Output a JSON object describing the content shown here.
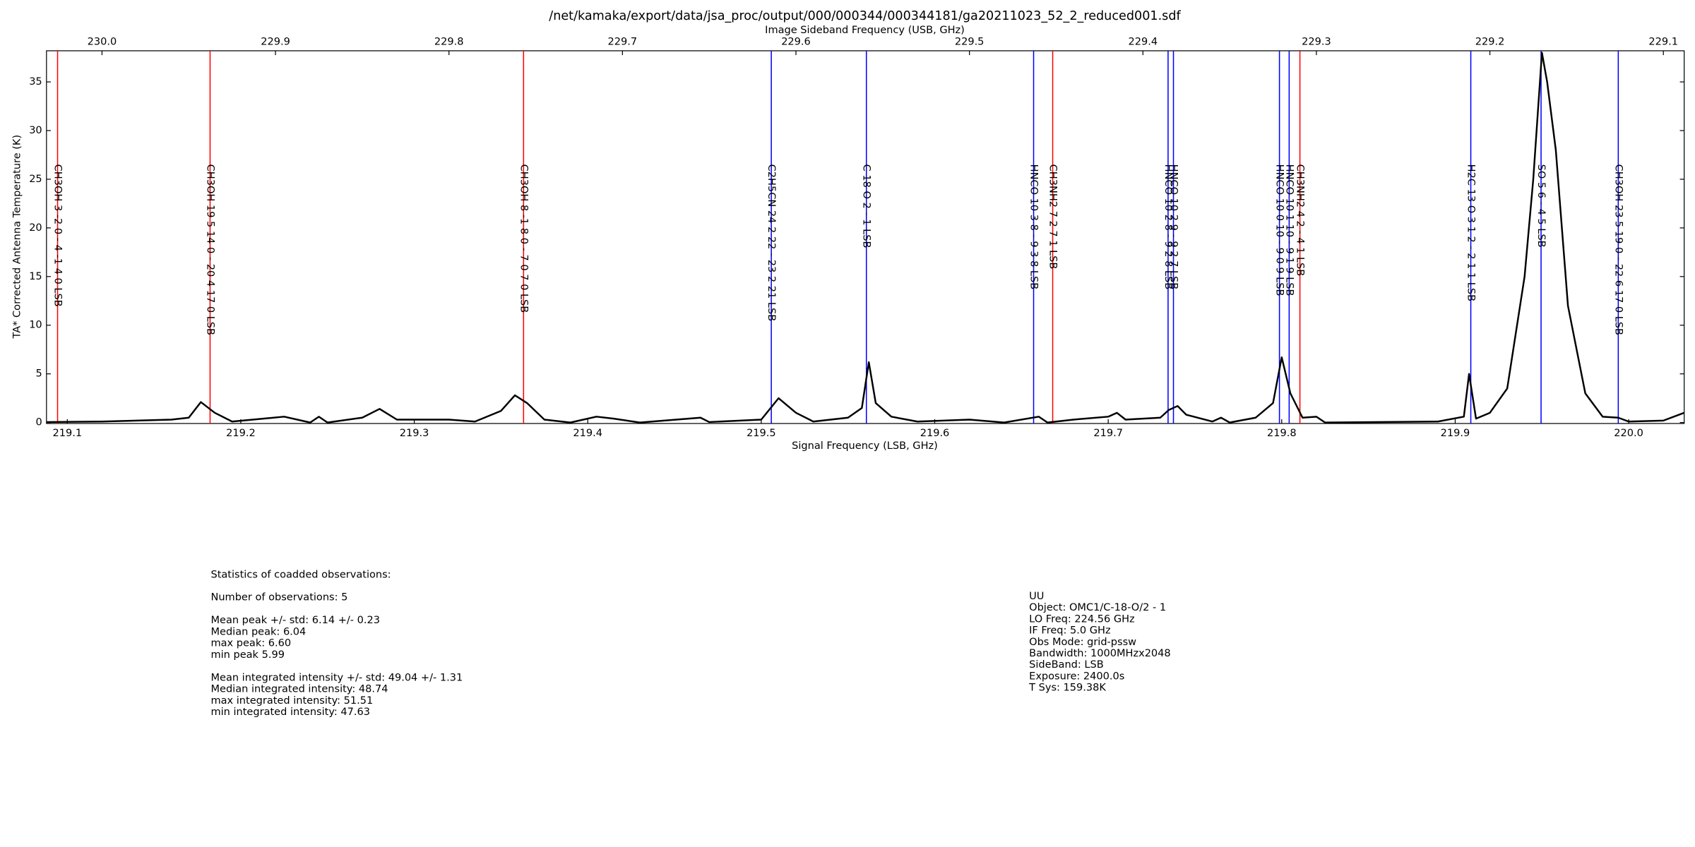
{
  "chart_data": {
    "type": "line",
    "title": "/net/kamaka/export/data/jsa_proc/output/000/000344/000344181/ga20211023_52_2_reduced001.sdf",
    "xlabel": "Signal Frequency (LSB, GHz)",
    "x2label": "Image Sideband Frequency (USB, GHz)",
    "ylabel": "TA* Corrected Antenna Temperature (K)",
    "xlim": [
      219.088,
      220.032
    ],
    "xticks": [
      219.1,
      219.2,
      219.3,
      219.4,
      219.5,
      219.6,
      219.7,
      219.8,
      219.9,
      {
        "value": 220.0,
        "label": "220.0"
      }
    ],
    "x2lim": [
      230.032,
      229.088
    ],
    "x2ticks": [
      {
        "value": 230.0,
        "label": "230.0"
      },
      229.9,
      229.8,
      229.7,
      229.6,
      229.5,
      229.4,
      229.3,
      229.2,
      229.1
    ],
    "ylim": [
      -0.1,
      38.2
    ],
    "yticks": [
      0,
      5,
      10,
      15,
      20,
      25,
      30,
      35
    ],
    "x": [
      219.088,
      219.12,
      219.16,
      219.17,
      219.177,
      219.185,
      219.195,
      219.225,
      219.24,
      219.245,
      219.25,
      219.27,
      219.28,
      219.29,
      219.32,
      219.335,
      219.35,
      219.358,
      219.365,
      219.375,
      219.39,
      219.405,
      219.415,
      219.43,
      219.465,
      219.47,
      219.5,
      219.51,
      219.52,
      219.53,
      219.55,
      219.558,
      219.562,
      219.566,
      219.575,
      219.59,
      219.62,
      219.64,
      219.66,
      219.665,
      219.68,
      219.7,
      219.705,
      219.71,
      219.73,
      219.735,
      219.74,
      219.745,
      219.76,
      219.765,
      219.77,
      219.785,
      219.795,
      219.8,
      219.805,
      219.812,
      219.82,
      219.825,
      219.89,
      219.905,
      219.908,
      219.912,
      219.92,
      219.93,
      219.94,
      219.945,
      219.95,
      219.953,
      219.958,
      219.965,
      219.975,
      219.985,
      219.994,
      220.0,
      220.02,
      220.032
    ],
    "series": [
      {
        "name": "spectrum",
        "color": "#000000",
        "values": [
          0.05,
          0.1,
          0.3,
          0.5,
          2.1,
          1.0,
          0.1,
          0.6,
          0.0,
          0.6,
          0.0,
          0.5,
          1.4,
          0.3,
          0.3,
          0.1,
          1.2,
          2.8,
          2.0,
          0.3,
          0.0,
          0.6,
          0.4,
          0.0,
          0.5,
          0.05,
          0.3,
          2.5,
          1.0,
          0.1,
          0.5,
          1.5,
          6.2,
          2.0,
          0.6,
          0.1,
          0.3,
          0.0,
          0.6,
          0.0,
          0.3,
          0.6,
          1.0,
          0.3,
          0.5,
          1.3,
          1.7,
          0.8,
          0.1,
          0.5,
          0.0,
          0.5,
          2.0,
          6.7,
          3.0,
          0.5,
          0.6,
          0.0,
          0.1,
          0.6,
          5.0,
          0.4,
          1.0,
          3.5,
          15,
          25,
          38,
          35,
          28,
          12,
          3,
          0.6,
          0.5,
          0.1,
          0.2,
          1.0
        ]
      }
    ],
    "lines": [
      {
        "x": 219.0944,
        "color": "#ff0000",
        "label": "CH3OH 3 -2 0 - 4 -1 4 0 LSB"
      },
      {
        "x": 219.1823,
        "color": "#ff0000",
        "label": "CH3OH 19 5 14 0 - 20 4 17 0 LSB"
      },
      {
        "x": 219.363,
        "color": "#ff0000",
        "label": "CH3OH 8 -1 8 0 - 7 0 7 0 LSB"
      },
      {
        "x": 219.5058,
        "color": "#0000ff",
        "label": "C2H5CN 24 2 22 - 23 2 21 LSB"
      },
      {
        "x": 219.5606,
        "color": "#0000ff",
        "label": "C 18 O 2 - 1 LSB"
      },
      {
        "x": 219.657,
        "color": "#0000ff",
        "label": "HNCO 10 3 8 - 9 3 8 LSB"
      },
      {
        "x": 219.668,
        "color": "#ff0000",
        "label": "CH3NH2 7 2 7 1 LSB"
      },
      {
        "x": 219.7345,
        "color": "#0000ff",
        "label": "HNCO 10 2 8 - 9 2 8 LSB"
      },
      {
        "x": 219.7376,
        "color": "#0000ff",
        "label": "HNCO 10 2 9 - 9 2 7 LSB"
      },
      {
        "x": 219.7987,
        "color": "#0000ff",
        "label": "HNCO 10 0 10 - 9 0 9 LSB"
      },
      {
        "x": 219.8043,
        "color": "#0000ff",
        "label": "HNCO 10 1 10 - 9 1 9 LSB"
      },
      {
        "x": 219.8105,
        "color": "#ff0000",
        "label": "CH3NH2 4 2 - 4 1 LSB"
      },
      {
        "x": 219.909,
        "color": "#0000ff",
        "label": "H2C 13 O 3 1 2 - 2 1 1 LSB"
      },
      {
        "x": 219.9495,
        "color": "#0000ff",
        "label": "SO 5 6 - 4 5 LSB"
      },
      {
        "x": 219.994,
        "color": "#0000ff",
        "label": "CH3OH 23 5 19 0 - 22 6 17 0 LSB"
      }
    ]
  },
  "statistics": [
    [
      "Statistics of coadded observations:"
    ],
    [
      "Number of observations: 5"
    ],
    [
      "Mean peak +/- std: 6.14 +/- 0.23",
      "Median peak: 6.04",
      "max peak: 6.60",
      "min peak 5.99"
    ],
    [
      "Mean integrated intensity +/- std: 49.04 +/- 1.31",
      "Median integrated intensity: 48.74",
      "max integrated intensity: 51.51",
      "min integrated intensity: 47.63"
    ]
  ],
  "observation": [
    "UU",
    "Object: OMC1/C-18-O/2 - 1",
    "LO Freq: 224.56 GHz",
    "IF Freq: 5.0 GHz",
    "Obs Mode: grid-pssw",
    "Bandwidth: 1000MHzx2048",
    "SideBand: LSB",
    "Exposure: 2400.0s",
    "T Sys: 159.38K"
  ]
}
